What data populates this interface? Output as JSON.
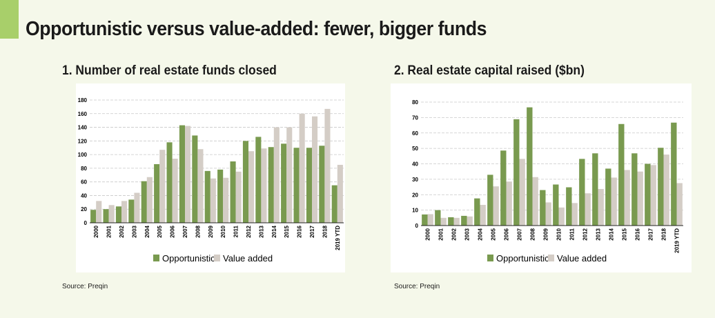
{
  "title": "Opportunistic versus value-added: fewer, bigger funds",
  "colors": {
    "opportunistic": "#799a4f",
    "value_added": "#d4cdc6",
    "accent": "#a8cf6a"
  },
  "chart_data": [
    {
      "type": "bar",
      "title": "1. Number of real estate funds closed",
      "ylim": [
        0,
        180
      ],
      "yticks": [
        0,
        20,
        40,
        60,
        80,
        100,
        120,
        140,
        160,
        180
      ],
      "grid": true,
      "legend": "bottom",
      "categories": [
        "2000",
        "2001",
        "2002",
        "2003",
        "2004",
        "2005",
        "2006",
        "2007",
        "2008",
        "2009",
        "2010",
        "2011",
        "2012",
        "2013",
        "2014",
        "2015",
        "2016",
        "2017",
        "2018",
        "2019 YTD"
      ],
      "series": [
        {
          "name": "Opportunistic",
          "values": [
            19,
            20,
            24,
            34,
            61,
            86,
            118,
            143,
            128,
            76,
            78,
            90,
            120,
            126,
            111,
            116,
            110,
            110,
            113,
            55
          ]
        },
        {
          "name": "Value added",
          "values": [
            32,
            26,
            32,
            44,
            67,
            107,
            94,
            142,
            108,
            65,
            66,
            75,
            105,
            109,
            140,
            140,
            160,
            156,
            167,
            85
          ]
        }
      ],
      "source": "Source: Preqin"
    },
    {
      "type": "bar",
      "title": "2. Real estate capital raised ($bn)",
      "ylim": [
        0,
        80
      ],
      "yticks": [
        0,
        10,
        20,
        30,
        40,
        50,
        60,
        70,
        80
      ],
      "grid": true,
      "legend": "bottom",
      "categories": [
        "2000",
        "2001",
        "2002",
        "2003",
        "2004",
        "2005",
        "2006",
        "2007",
        "2008",
        "2009",
        "2010",
        "2011",
        "2012",
        "2013",
        "2014",
        "2015",
        "2016",
        "2017",
        "2018",
        "2019 YTD"
      ],
      "series": [
        {
          "name": "Opportunistic",
          "values": [
            7.2,
            10,
            5.4,
            6.3,
            17.6,
            32.9,
            48.6,
            68.9,
            76.6,
            23,
            26.6,
            24.8,
            43.2,
            46.8,
            36.9,
            65.8,
            46.8,
            40,
            50.4,
            66.7
          ]
        },
        {
          "name": "Value added",
          "values": [
            7.4,
            5,
            5,
            5.9,
            13.4,
            25.4,
            28.5,
            43.2,
            31.4,
            15,
            11.7,
            14.6,
            20.9,
            23.7,
            31.1,
            36,
            35,
            39.2,
            46,
            27.5
          ]
        }
      ],
      "source": "Source: Preqin"
    }
  ]
}
